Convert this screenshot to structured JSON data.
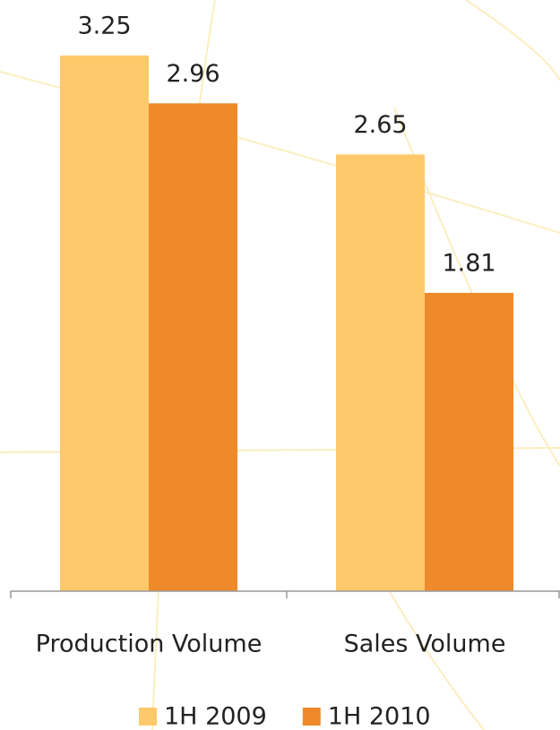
{
  "chart_data": {
    "type": "bar",
    "categories": [
      "Production Volume",
      "Sales Volume"
    ],
    "series": [
      {
        "name": "1H 2009",
        "color": "#fdc96a",
        "values": [
          3.25,
          2.65
        ]
      },
      {
        "name": "1H 2010",
        "color": "#ee8a2a",
        "values": [
          2.96,
          1.81
        ]
      }
    ]
  }
}
